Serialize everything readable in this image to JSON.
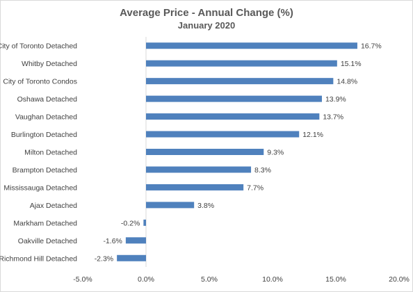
{
  "chart_data": {
    "type": "bar",
    "orientation": "horizontal",
    "title": "Average Price - Annual Change (%)",
    "subtitle": "January 2020",
    "categories": [
      "City of Toronto Detached",
      "Whitby Detached",
      "City of Toronto Condos",
      "Oshawa Detached",
      "Vaughan Detached",
      "Burlington Detached",
      "Milton Detached",
      "Brampton Detached",
      "Mississauga Detached",
      "Ajax Detached",
      "Markham Detached",
      "Oakville Detached",
      "Richmond Hill Detached"
    ],
    "values": [
      16.7,
      15.1,
      14.8,
      13.9,
      13.7,
      12.1,
      9.3,
      8.3,
      7.7,
      3.8,
      -0.2,
      -1.6,
      -2.3
    ],
    "data_labels": [
      "16.7%",
      "15.1%",
      "14.8%",
      "13.9%",
      "13.7%",
      "12.1%",
      "9.3%",
      "8.3%",
      "7.7%",
      "3.8%",
      "-0.2%",
      "-1.6%",
      "-2.3%"
    ],
    "x_ticks": [
      -5,
      0,
      5,
      10,
      15,
      20
    ],
    "x_tick_labels": [
      "-5.0%",
      "0.0%",
      "5.0%",
      "10.0%",
      "15.0%",
      "20.0%"
    ],
    "xlim": [
      -5,
      20
    ],
    "xlabel": "",
    "ylabel": "",
    "grid": false,
    "legend": "none",
    "bar_color": "#4f81bd"
  }
}
